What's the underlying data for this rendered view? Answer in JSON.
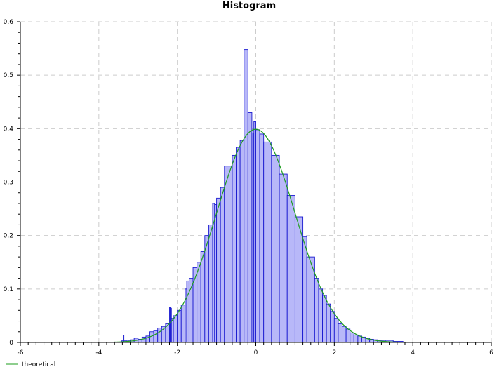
{
  "chart_data": {
    "type": "bar",
    "title": "Histogram",
    "xlabel": "",
    "ylabel": "",
    "xlim": [
      -6,
      6
    ],
    "ylim": [
      0,
      0.6
    ],
    "x_ticks": [
      "-6",
      "-4",
      "-2",
      "0",
      "2",
      "4",
      "6"
    ],
    "y_ticks": [
      "0",
      "0.1",
      "0.2",
      "0.3",
      "0.4",
      "0.5",
      "0.6"
    ],
    "grid": true,
    "legend_position": "bottom-left",
    "colors": {
      "bar_fill": "#b8b8f8",
      "bar_stroke": "#1a1ad0",
      "curve": "#1e9e1e",
      "grid": "#cccccc"
    },
    "bins": [
      {
        "x0": -3.42,
        "x1": -3.38,
        "y": 0.003
      },
      {
        "x0": -3.38,
        "x1": -3.36,
        "y": 0.013
      },
      {
        "x0": -3.36,
        "x1": -3.3,
        "y": 0.003
      },
      {
        "x0": -3.3,
        "x1": -3.2,
        "y": 0.004
      },
      {
        "x0": -3.2,
        "x1": -3.1,
        "y": 0.005
      },
      {
        "x0": -3.1,
        "x1": -3.0,
        "y": 0.008
      },
      {
        "x0": -3.0,
        "x1": -2.9,
        "y": 0.006
      },
      {
        "x0": -2.9,
        "x1": -2.8,
        "y": 0.01
      },
      {
        "x0": -2.8,
        "x1": -2.7,
        "y": 0.012
      },
      {
        "x0": -2.7,
        "x1": -2.6,
        "y": 0.02
      },
      {
        "x0": -2.6,
        "x1": -2.5,
        "y": 0.022
      },
      {
        "x0": -2.5,
        "x1": -2.4,
        "y": 0.027
      },
      {
        "x0": -2.4,
        "x1": -2.3,
        "y": 0.03
      },
      {
        "x0": -2.3,
        "x1": -2.2,
        "y": 0.035
      },
      {
        "x0": -2.2,
        "x1": -2.18,
        "y": 0.065
      },
      {
        "x0": -2.18,
        "x1": -2.15,
        "y": 0.064
      },
      {
        "x0": -2.15,
        "x1": -2.1,
        "y": 0.045
      },
      {
        "x0": -2.1,
        "x1": -2.0,
        "y": 0.05
      },
      {
        "x0": -2.0,
        "x1": -1.9,
        "y": 0.06
      },
      {
        "x0": -1.9,
        "x1": -1.8,
        "y": 0.07
      },
      {
        "x0": -1.8,
        "x1": -1.76,
        "y": 0.1
      },
      {
        "x0": -1.76,
        "x1": -1.7,
        "y": 0.115
      },
      {
        "x0": -1.7,
        "x1": -1.6,
        "y": 0.12
      },
      {
        "x0": -1.6,
        "x1": -1.5,
        "y": 0.14
      },
      {
        "x0": -1.5,
        "x1": -1.4,
        "y": 0.15
      },
      {
        "x0": -1.4,
        "x1": -1.3,
        "y": 0.17
      },
      {
        "x0": -1.3,
        "x1": -1.2,
        "y": 0.2
      },
      {
        "x0": -1.2,
        "x1": -1.1,
        "y": 0.22
      },
      {
        "x0": -1.1,
        "x1": -1.05,
        "y": 0.26
      },
      {
        "x0": -1.05,
        "x1": -1.0,
        "y": 0.258
      },
      {
        "x0": -1.0,
        "x1": -0.9,
        "y": 0.27
      },
      {
        "x0": -0.9,
        "x1": -0.8,
        "y": 0.29
      },
      {
        "x0": -0.8,
        "x1": -0.6,
        "y": 0.33
      },
      {
        "x0": -0.6,
        "x1": -0.5,
        "y": 0.35
      },
      {
        "x0": -0.5,
        "x1": -0.4,
        "y": 0.365
      },
      {
        "x0": -0.4,
        "x1": -0.3,
        "y": 0.378
      },
      {
        "x0": -0.3,
        "x1": -0.2,
        "y": 0.548
      },
      {
        "x0": -0.2,
        "x1": -0.1,
        "y": 0.43
      },
      {
        "x0": -0.1,
        "x1": -0.05,
        "y": 0.392
      },
      {
        "x0": -0.05,
        "x1": 0.0,
        "y": 0.413
      },
      {
        "x0": 0.0,
        "x1": 0.1,
        "y": 0.398
      },
      {
        "x0": 0.1,
        "x1": 0.2,
        "y": 0.39
      },
      {
        "x0": 0.2,
        "x1": 0.4,
        "y": 0.375
      },
      {
        "x0": 0.4,
        "x1": 0.6,
        "y": 0.35
      },
      {
        "x0": 0.6,
        "x1": 0.8,
        "y": 0.315
      },
      {
        "x0": 0.8,
        "x1": 1.0,
        "y": 0.275
      },
      {
        "x0": 1.0,
        "x1": 1.2,
        "y": 0.235
      },
      {
        "x0": 1.2,
        "x1": 1.3,
        "y": 0.198
      },
      {
        "x0": 1.3,
        "x1": 1.5,
        "y": 0.16
      },
      {
        "x0": 1.5,
        "x1": 1.6,
        "y": 0.12
      },
      {
        "x0": 1.6,
        "x1": 1.7,
        "y": 0.1
      },
      {
        "x0": 1.7,
        "x1": 1.8,
        "y": 0.088
      },
      {
        "x0": 1.8,
        "x1": 1.9,
        "y": 0.072
      },
      {
        "x0": 1.9,
        "x1": 2.0,
        "y": 0.058
      },
      {
        "x0": 2.0,
        "x1": 2.1,
        "y": 0.045
      },
      {
        "x0": 2.1,
        "x1": 2.2,
        "y": 0.035
      },
      {
        "x0": 2.2,
        "x1": 2.3,
        "y": 0.03
      },
      {
        "x0": 2.3,
        "x1": 2.4,
        "y": 0.025
      },
      {
        "x0": 2.4,
        "x1": 2.5,
        "y": 0.018
      },
      {
        "x0": 2.5,
        "x1": 2.6,
        "y": 0.014
      },
      {
        "x0": 2.6,
        "x1": 2.7,
        "y": 0.012
      },
      {
        "x0": 2.7,
        "x1": 2.8,
        "y": 0.01
      },
      {
        "x0": 2.8,
        "x1": 2.9,
        "y": 0.008
      },
      {
        "x0": 2.9,
        "x1": 3.0,
        "y": 0.006
      },
      {
        "x0": 3.0,
        "x1": 3.1,
        "y": 0.005
      },
      {
        "x0": 3.1,
        "x1": 3.3,
        "y": 0.004
      },
      {
        "x0": 3.3,
        "x1": 3.5,
        "y": 0.004
      },
      {
        "x0": 3.5,
        "x1": 3.75,
        "y": 0.002
      }
    ],
    "series": [
      {
        "name": "theoretical",
        "type": "line",
        "function": "normal_pdf",
        "mean": 0,
        "sd": 1,
        "x_range": [
          -3.8,
          3.8
        ]
      }
    ]
  }
}
